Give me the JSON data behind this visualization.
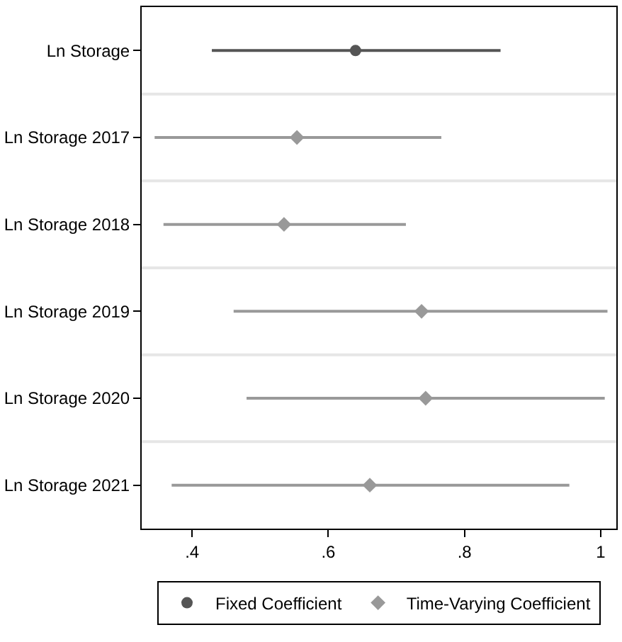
{
  "chart_data": {
    "type": "scatter",
    "orientation": "horizontal",
    "categories": [
      "Ln Storage",
      "Ln Storage 2017",
      "Ln Storage 2018",
      "Ln Storage 2019",
      "Ln Storage 2020",
      "Ln Storage 2021"
    ],
    "series": [
      {
        "name": "Fixed Coefficient",
        "color": "#555555",
        "marker": "circle",
        "values": [
          0.64,
          null,
          null,
          null,
          null,
          null
        ],
        "errors": [
          [
            0.429,
            0.853
          ],
          null,
          null,
          null,
          null,
          null
        ]
      },
      {
        "name": "Time-Varying Coefficient",
        "color": "#999999",
        "marker": "diamond",
        "values": [
          null,
          0.554,
          0.535,
          0.737,
          0.743,
          0.661
        ],
        "errors": [
          null,
          [
            0.345,
            0.766
          ],
          [
            0.358,
            0.714
          ],
          [
            0.461,
            1.01
          ],
          [
            0.48,
            1.006
          ],
          [
            0.37,
            0.954
          ]
        ]
      }
    ],
    "xlim": [
      0.326,
      1.023
    ],
    "xticks": [
      {
        "value": 0.4,
        "label": ".4"
      },
      {
        "value": 0.6,
        "label": ".6"
      },
      {
        "value": 0.8,
        "label": ".8"
      },
      1
    ],
    "grid": "y",
    "legend": "bottom"
  }
}
